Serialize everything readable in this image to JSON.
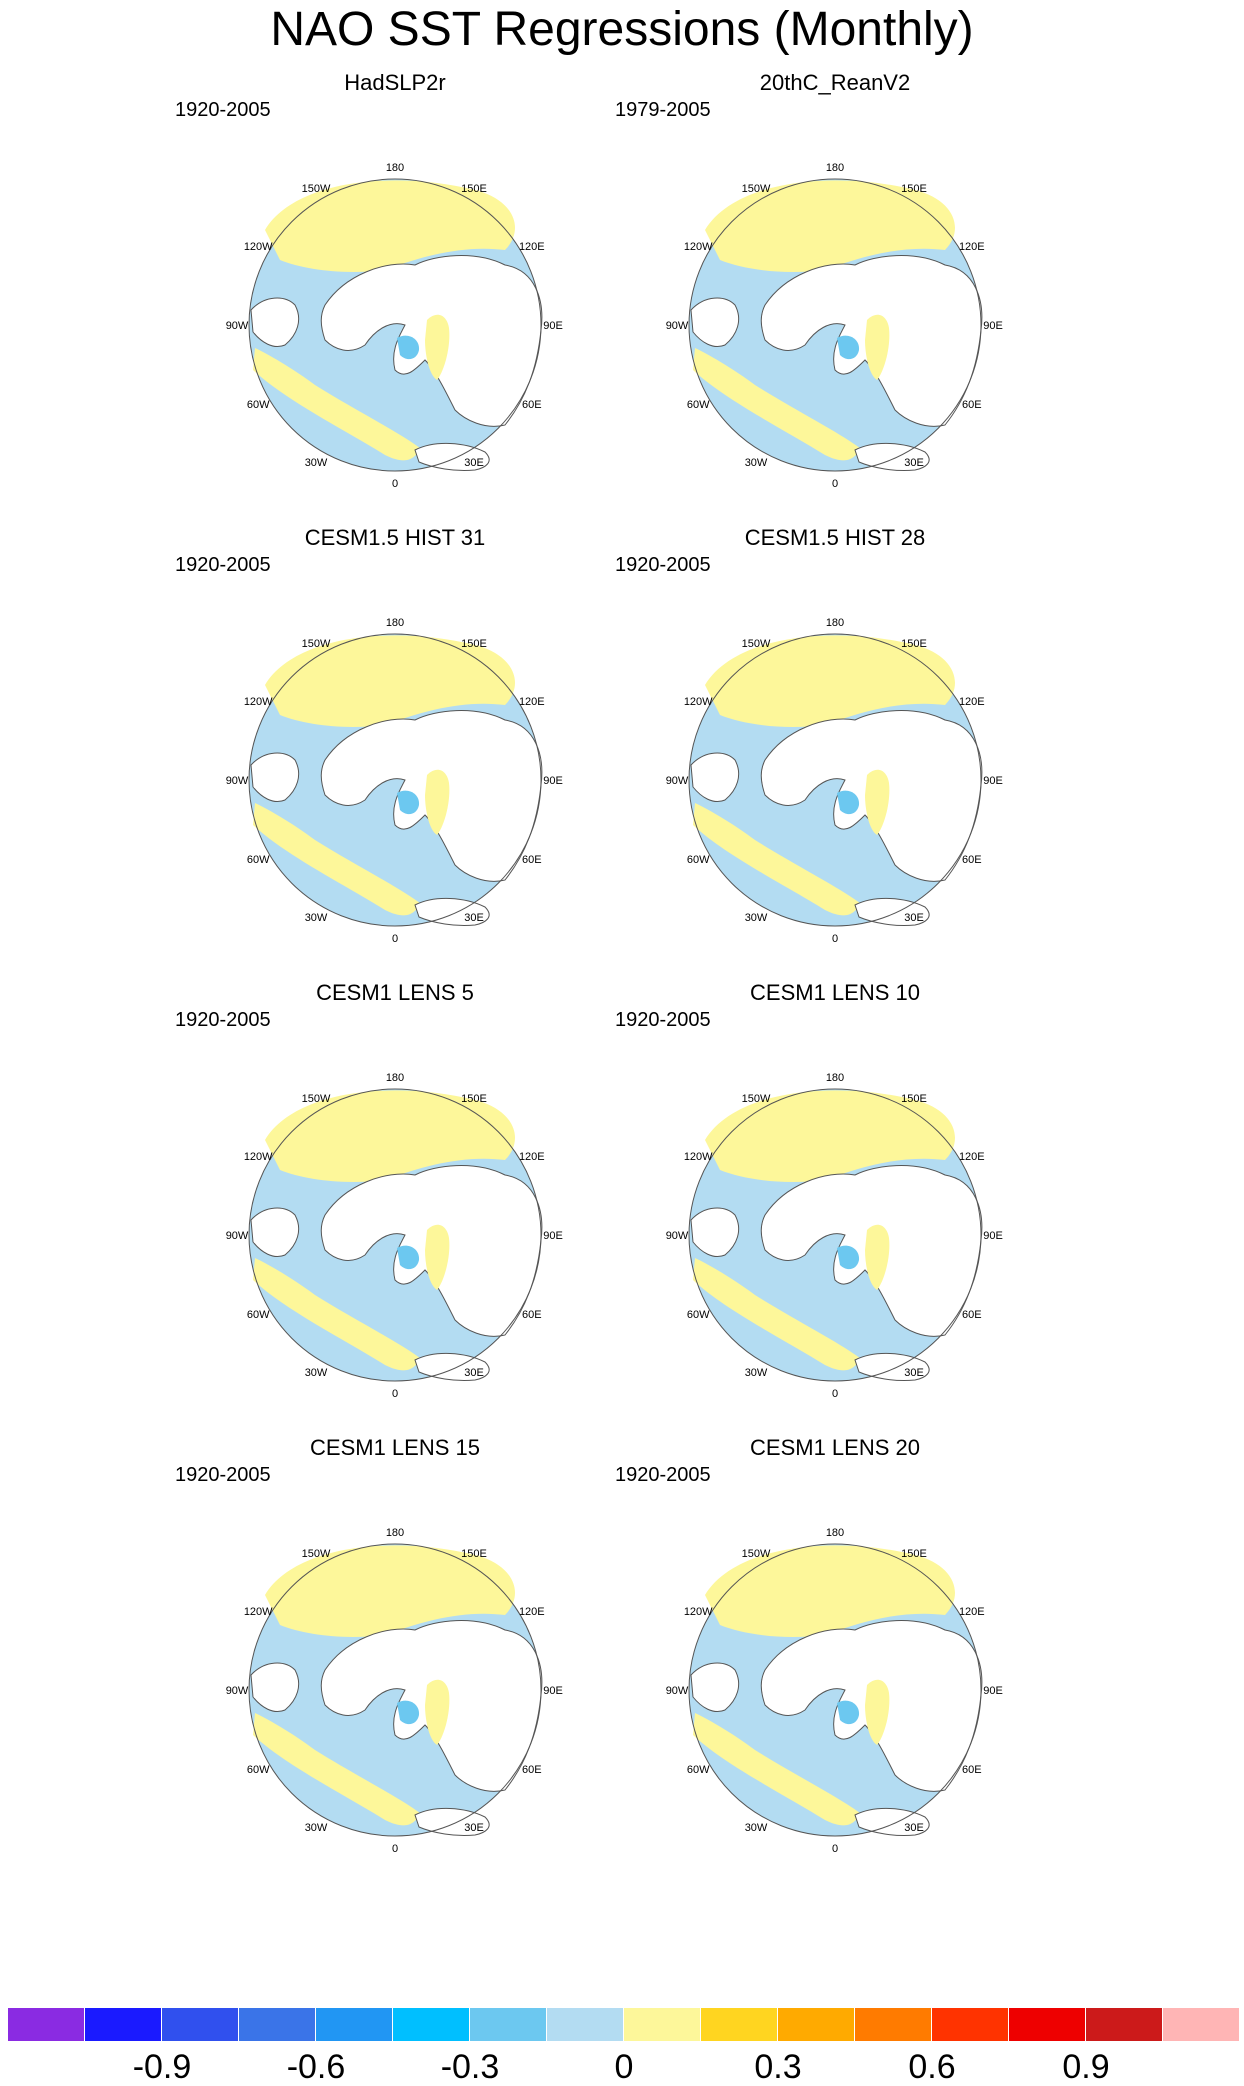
{
  "title": "NAO SST Regressions (Monthly)",
  "panels": [
    {
      "title": "HadSLP2r",
      "period": "1920-2005"
    },
    {
      "title": "20thC_ReanV2",
      "period": "1979-2005"
    },
    {
      "title": "CESM1.5 HIST 31",
      "period": "1920-2005"
    },
    {
      "title": "CESM1.5 HIST 28",
      "period": "1920-2005"
    },
    {
      "title": "CESM1 LENS 5",
      "period": "1920-2005"
    },
    {
      "title": "CESM1 LENS 10",
      "period": "1920-2005"
    },
    {
      "title": "CESM1 LENS 15",
      "period": "1920-2005"
    },
    {
      "title": "CESM1 LENS 20",
      "period": "1920-2005"
    }
  ],
  "longitude_labels": [
    "180",
    "150E",
    "120E",
    "90E",
    "60E",
    "30E",
    "0",
    "30W",
    "60W",
    "90W",
    "120W",
    "150W"
  ],
  "colorbar": {
    "colors": [
      "#8a2be2",
      "#1a1aff",
      "#3050ee",
      "#3a74e8",
      "#2196f3",
      "#00bfff",
      "#6cc8f0",
      "#b3dcf2",
      "#fdf79a",
      "#ffd520",
      "#ffaa00",
      "#ff7b00",
      "#ff3300",
      "#ee0000",
      "#cc1a1a",
      "#ffb5b5"
    ],
    "tick_labels": [
      "-0.9",
      "-0.6",
      "-0.3",
      "0",
      "0.3",
      "0.6",
      "0.9"
    ],
    "tick_box_boundaries": [
      2,
      4,
      6,
      8,
      10,
      12,
      14
    ]
  },
  "colors": {
    "positive_weak": "#fdf79a",
    "negative_weak": "#b3dcf2",
    "positive_moderate": "#ffd520",
    "negative_moderate": "#6cc8f0",
    "land": "#ffffff",
    "coast": "#555555"
  }
}
